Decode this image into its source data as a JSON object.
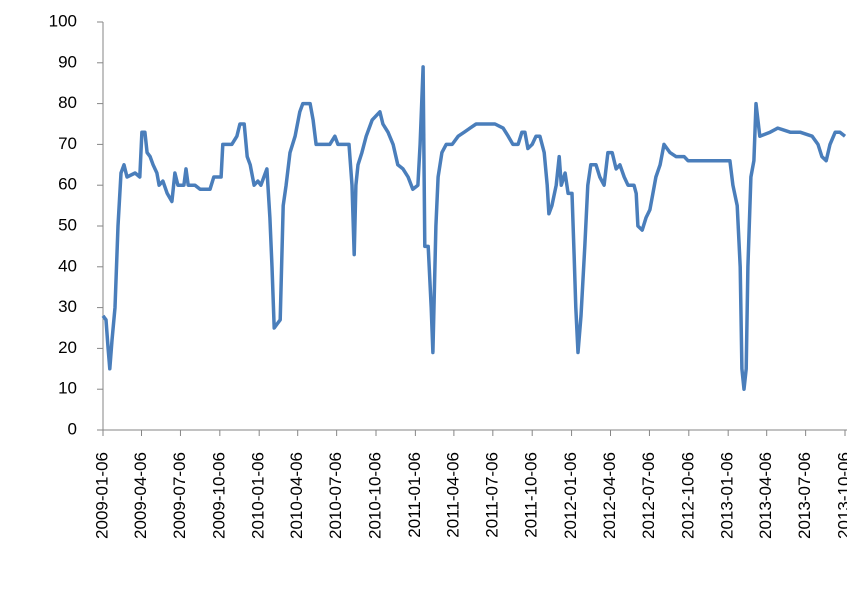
{
  "chart_data": {
    "type": "line",
    "color": "#4a7ebb",
    "xlim": [
      "2009-01-06",
      "2013-10-06"
    ],
    "xticks": [
      "2009-01-06",
      "2009-04-06",
      "2009-07-06",
      "2009-10-06",
      "2010-01-06",
      "2010-04-06",
      "2010-07-06",
      "2010-10-06",
      "2011-01-06",
      "2011-04-06",
      "2011-07-06",
      "2011-10-06",
      "2012-01-06",
      "2012-04-06",
      "2012-07-06",
      "2012-10-06",
      "2013-01-06",
      "2013-04-06",
      "2013-07-06",
      "2013-10-06"
    ],
    "ylim": [
      0,
      100
    ],
    "yticks": [
      0,
      10,
      20,
      30,
      40,
      50,
      60,
      70,
      80,
      90,
      100
    ],
    "x": [
      "2009-01-06",
      "2009-01-13",
      "2009-01-18",
      "2009-01-22",
      "2009-01-27",
      "2009-02-03",
      "2009-02-10",
      "2009-02-17",
      "2009-02-24",
      "2009-03-03",
      "2009-03-22",
      "2009-04-02",
      "2009-04-07",
      "2009-04-14",
      "2009-04-19",
      "2009-04-26",
      "2009-05-03",
      "2009-05-12",
      "2009-05-17",
      "2009-05-26",
      "2009-06-05",
      "2009-06-16",
      "2009-06-23",
      "2009-06-30",
      "2009-07-14",
      "2009-07-19",
      "2009-07-24",
      "2009-08-09",
      "2009-08-21",
      "2009-09-13",
      "2009-09-22",
      "2009-10-09",
      "2009-10-13",
      "2009-11-03",
      "2009-11-15",
      "2009-11-22",
      "2009-12-02",
      "2009-12-09",
      "2009-12-16",
      "2009-12-25",
      "2010-01-03",
      "2010-01-10",
      "2010-01-17",
      "2010-01-24",
      "2010-01-31",
      "2010-02-05",
      "2010-02-10",
      "2010-02-17",
      "2010-02-24",
      "2010-03-03",
      "2010-03-10",
      "2010-03-19",
      "2010-03-31",
      "2010-04-11",
      "2010-04-18",
      "2010-05-05",
      "2010-05-12",
      "2010-05-19",
      "2010-06-20",
      "2010-07-02",
      "2010-07-09",
      "2010-08-04",
      "2010-08-11",
      "2010-08-16",
      "2010-08-20",
      "2010-08-25",
      "2010-09-03",
      "2010-09-13",
      "2010-09-27",
      "2010-10-15",
      "2010-10-22",
      "2010-11-03",
      "2010-11-15",
      "2010-11-26",
      "2010-12-08",
      "2010-12-20",
      "2010-12-31",
      "2011-01-12",
      "2011-01-17",
      "2011-01-24",
      "2011-01-28",
      "2011-02-05",
      "2011-02-12",
      "2011-02-16",
      "2011-02-23",
      "2011-02-28",
      "2011-03-09",
      "2011-03-19",
      "2011-04-02",
      "2011-04-16",
      "2011-04-30",
      "2011-05-14",
      "2011-05-28",
      "2011-06-18",
      "2011-07-11",
      "2011-07-30",
      "2011-08-11",
      "2011-08-22",
      "2011-09-03",
      "2011-09-12",
      "2011-09-19",
      "2011-09-26",
      "2011-10-06",
      "2011-10-15",
      "2011-10-24",
      "2011-11-03",
      "2011-11-10",
      "2011-11-14",
      "2011-11-21",
      "2011-12-01",
      "2011-12-08",
      "2011-12-13",
      "2011-12-22",
      "2011-12-29",
      "2012-01-07",
      "2012-01-12",
      "2012-01-16",
      "2012-01-21",
      "2012-01-28",
      "2012-02-06",
      "2012-02-13",
      "2012-02-20",
      "2012-03-03",
      "2012-03-12",
      "2012-03-22",
      "2012-03-31",
      "2012-04-10",
      "2012-04-19",
      "2012-04-28",
      "2012-05-08",
      "2012-05-17",
      "2012-05-31",
      "2012-06-05",
      "2012-06-09",
      "2012-06-19",
      "2012-06-28",
      "2012-07-07",
      "2012-07-14",
      "2012-07-21",
      "2012-07-31",
      "2012-08-09",
      "2012-08-23",
      "2012-09-06",
      "2012-09-25",
      "2012-10-04",
      "2012-11-01",
      "2012-12-18",
      "2013-01-10",
      "2013-01-17",
      "2013-01-27",
      "2013-02-03",
      "2013-02-07",
      "2013-02-12",
      "2013-02-17",
      "2013-02-21",
      "2013-02-28",
      "2013-03-07",
      "2013-03-12",
      "2013-03-21",
      "2013-04-14",
      "2013-05-02",
      "2013-05-31",
      "2013-06-23",
      "2013-07-21",
      "2013-08-04",
      "2013-08-13",
      "2013-08-23",
      "2013-09-01",
      "2013-09-13",
      "2013-09-24",
      "2013-10-06"
    ],
    "values": [
      28,
      27,
      20,
      15,
      22,
      30,
      50,
      63,
      65,
      62,
      63,
      62,
      73,
      73,
      68,
      67,
      65,
      63,
      60,
      61,
      58,
      56,
      63,
      60,
      60,
      64,
      60,
      60,
      59,
      59,
      62,
      62,
      70,
      70,
      72,
      75,
      75,
      67,
      65,
      60,
      61,
      60,
      62,
      64,
      52,
      40,
      25,
      26,
      27,
      55,
      60,
      68,
      72,
      78,
      80,
      80,
      76,
      70,
      70,
      72,
      70,
      70,
      60,
      43,
      60,
      65,
      68,
      72,
      76,
      78,
      75,
      73,
      70,
      65,
      64,
      62,
      59,
      60,
      70,
      89,
      45,
      45,
      30,
      19,
      50,
      62,
      68,
      70,
      70,
      72,
      73,
      74,
      75,
      75,
      75,
      74,
      72,
      70,
      70,
      73,
      73,
      69,
      70,
      72,
      72,
      68,
      60,
      53,
      55,
      60,
      67,
      60,
      63,
      58,
      58,
      43,
      30,
      19,
      28,
      45,
      60,
      65,
      65,
      62,
      60,
      68,
      68,
      64,
      65,
      62,
      60,
      60,
      58,
      50,
      49,
      52,
      54,
      58,
      62,
      65,
      70,
      68,
      67,
      67,
      66,
      66,
      66,
      66,
      60,
      55,
      40,
      15,
      10,
      15,
      40,
      62,
      66,
      80,
      72,
      73,
      74,
      73,
      73,
      72,
      70,
      67,
      66,
      70,
      73,
      73,
      72
    ]
  }
}
